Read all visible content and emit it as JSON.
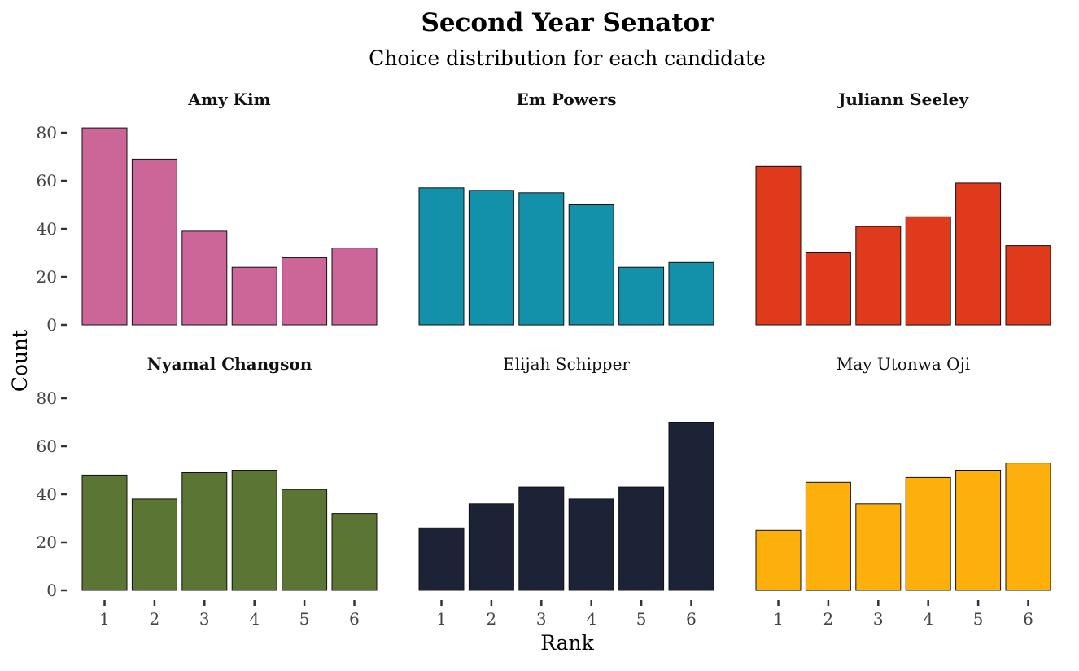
{
  "chart_data": {
    "type": "bar",
    "title": "Second Year Senator",
    "subtitle": "Choice distribution for each candidate",
    "xlabel": "Rank",
    "ylabel": "Count",
    "categories": [
      "1",
      "2",
      "3",
      "4",
      "5",
      "6"
    ],
    "ylim": [
      0,
      84
    ],
    "yticks": [
      "0",
      "20",
      "40",
      "60",
      "80"
    ],
    "grid": false,
    "legend": "none",
    "panels": [
      {
        "name": "Amy Kim",
        "bold": true,
        "color": "#CC6699",
        "values": [
          82,
          69,
          39,
          24,
          28,
          32
        ]
      },
      {
        "name": "Em Powers",
        "bold": true,
        "color": "#1391AB",
        "values": [
          57,
          56,
          55,
          50,
          24,
          26
        ]
      },
      {
        "name": "Juliann Seeley",
        "bold": true,
        "color": "#DE3A1B",
        "values": [
          66,
          30,
          41,
          45,
          59,
          33
        ]
      },
      {
        "name": "Nyamal Changson",
        "bold": true,
        "color": "#5B7634",
        "values": [
          48,
          38,
          49,
          50,
          42,
          32
        ]
      },
      {
        "name": "Elijah Schipper",
        "bold": false,
        "color": "#1D2336",
        "values": [
          26,
          36,
          43,
          38,
          43,
          70
        ]
      },
      {
        "name": "May Utonwa Oji",
        "bold": false,
        "color": "#FDAF0B",
        "values": [
          25,
          45,
          36,
          47,
          50,
          53
        ]
      }
    ]
  }
}
